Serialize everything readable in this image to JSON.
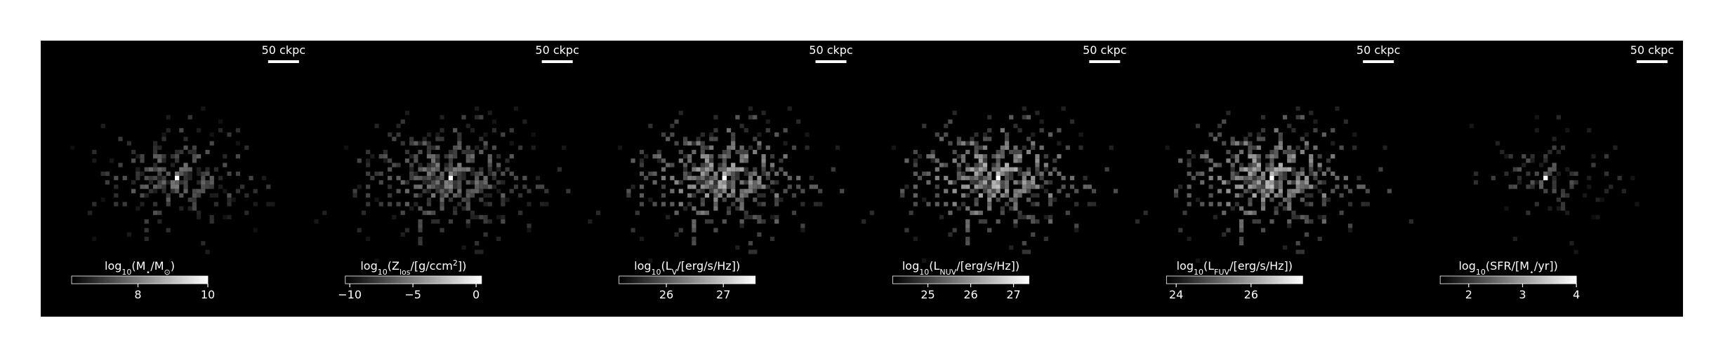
{
  "chart_data": {
    "type": "image-grid",
    "panels": [
      {
        "scale_bar": "50 ckpc",
        "density": 0.55,
        "spread": 1.0,
        "brightness": 0.55,
        "colorbar": {
          "label_parts": [
            {
              "text": "log"
            },
            {
              "text": "10",
              "shift": "sub"
            },
            {
              "text": "(M"
            },
            {
              "text": "⋆",
              "shift": "sub"
            },
            {
              "text": "/M"
            },
            {
              "text": "⊙",
              "shift": "sub"
            },
            {
              "text": ")"
            }
          ],
          "xlim": [
            6.1,
            10
          ],
          "xticks": [
            8,
            10
          ]
        }
      },
      {
        "scale_bar": "50 ckpc",
        "density": 0.7,
        "spread": 1.3,
        "brightness": 0.6,
        "colorbar": {
          "label_parts": [
            {
              "text": "log"
            },
            {
              "text": "10",
              "shift": "sub"
            },
            {
              "text": "(Z"
            },
            {
              "text": "los",
              "shift": "sub"
            },
            {
              "text": "/[g/ccm"
            },
            {
              "text": "2",
              "shift": "sup"
            },
            {
              "text": "])"
            }
          ],
          "xlim": [
            -10.35,
            0.43
          ],
          "xticks": [
            {
              "value": -10,
              "label": "−10"
            },
            {
              "value": -5,
              "label": "−5"
            },
            0
          ]
        }
      },
      {
        "scale_bar": "50 ckpc",
        "density": 0.7,
        "spread": 1.3,
        "brightness": 0.8,
        "colorbar": {
          "label_parts": [
            {
              "text": "log"
            },
            {
              "text": "10",
              "shift": "sub"
            },
            {
              "text": "(L"
            },
            {
              "text": "V",
              "shift": "sub"
            },
            {
              "text": "/[erg/s/Hz])"
            }
          ],
          "xlim": [
            25.17,
            27.56
          ],
          "xticks": [
            26,
            27
          ]
        }
      },
      {
        "scale_bar": "50 ckpc",
        "density": 0.7,
        "spread": 1.3,
        "brightness": 0.85,
        "colorbar": {
          "label_parts": [
            {
              "text": "log"
            },
            {
              "text": "10",
              "shift": "sub"
            },
            {
              "text": "(L"
            },
            {
              "text": "NUV",
              "shift": "sub"
            },
            {
              "text": "/[erg/s/Hz])"
            }
          ],
          "xlim": [
            24.18,
            27.36
          ],
          "xticks": [
            25,
            26,
            27
          ]
        }
      },
      {
        "scale_bar": "50 ckpc",
        "density": 0.7,
        "spread": 1.3,
        "brightness": 0.85,
        "colorbar": {
          "label_parts": [
            {
              "text": "log"
            },
            {
              "text": "10",
              "shift": "sub"
            },
            {
              "text": "(L"
            },
            {
              "text": "FUV",
              "shift": "sub"
            },
            {
              "text": "/[erg/s/Hz])"
            }
          ],
          "xlim": [
            23.74,
            27.38
          ],
          "xticks": [
            24,
            26
          ]
        }
      },
      {
        "scale_bar": "50 ckpc",
        "density": 0.3,
        "spread": 0.8,
        "brightness": 0.45,
        "colorbar": {
          "label_parts": [
            {
              "text": "log"
            },
            {
              "text": "10",
              "shift": "sub"
            },
            {
              "text": "(SFR/[M"
            },
            {
              "text": "⋆",
              "shift": "sub"
            },
            {
              "text": "/yr])"
            }
          ],
          "xlim": [
            1.47,
            4
          ],
          "xticks": [
            2,
            3,
            4
          ]
        }
      }
    ]
  }
}
